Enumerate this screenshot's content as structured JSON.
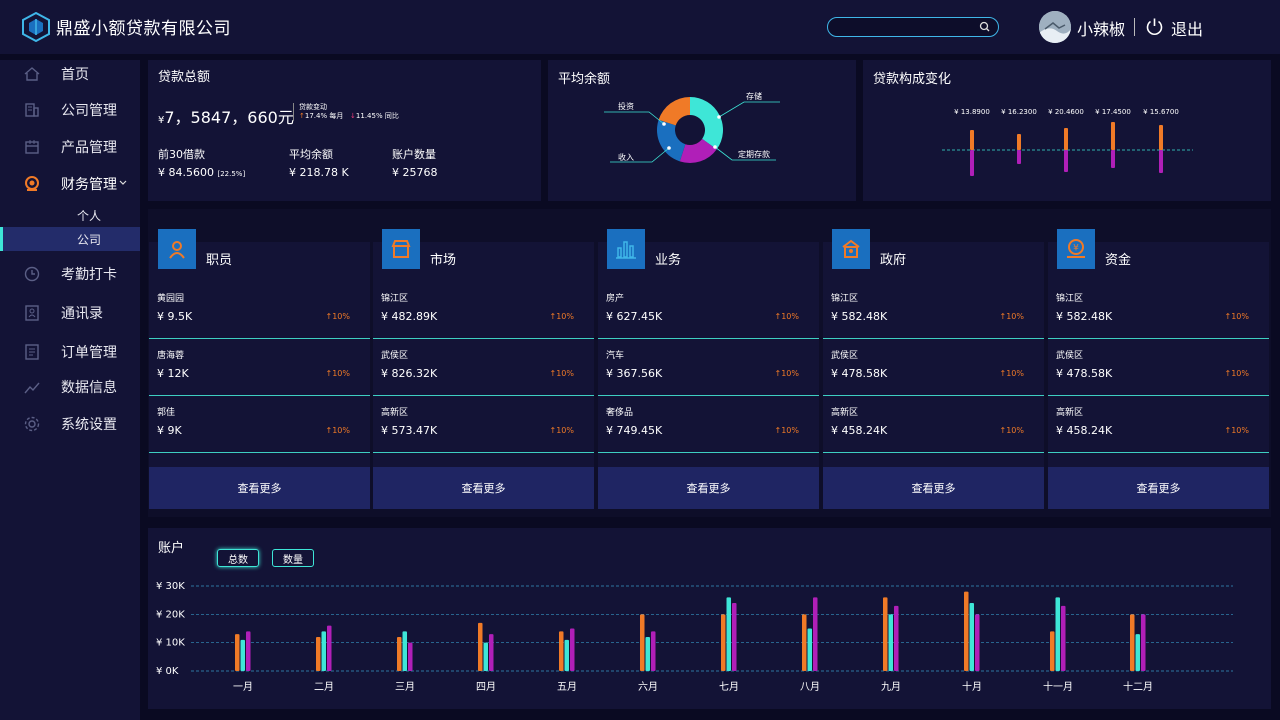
{
  "header": {
    "company": "鼎盛小额贷款有限公司",
    "search_placeholder": "",
    "username": "小辣椒",
    "logout": "退出"
  },
  "sidebar": {
    "items": [
      {
        "label": "首页",
        "icon": "home-icon"
      },
      {
        "label": "公司管理",
        "icon": "building-icon"
      },
      {
        "label": "产品管理",
        "icon": "product-icon"
      },
      {
        "label": "财务管理",
        "icon": "finance-icon",
        "expanded": true
      },
      {
        "label": "考勤打卡",
        "icon": "clock-icon"
      },
      {
        "label": "通讯录",
        "icon": "contacts-icon"
      },
      {
        "label": "订单管理",
        "icon": "order-icon"
      },
      {
        "label": "数据信息",
        "icon": "data-icon"
      },
      {
        "label": "系统设置",
        "icon": "gear-icon"
      }
    ],
    "sub_items": [
      {
        "label": "个人",
        "active": false
      },
      {
        "label": "公司",
        "active": true
      }
    ]
  },
  "loan_total": {
    "title": "贷款总额",
    "currency": "¥",
    "amount": "7，5847，660元",
    "trend_title": "贷款变动",
    "trend_up": "17.4% 每月",
    "trend_down": "11.45% 同比",
    "stats": [
      {
        "label": "前30借款",
        "value": "¥ 84.5600",
        "note": "[22.5%]"
      },
      {
        "label": "平均余额",
        "value": "¥ 218.78 K",
        "note": ""
      },
      {
        "label": "账户数量",
        "value": "¥ 25768",
        "note": ""
      }
    ]
  },
  "avg_balance": {
    "title": "平均余额",
    "segments": [
      {
        "label": "存储",
        "value": 35,
        "color": "#3ee6d7"
      },
      {
        "label": "定期存款",
        "value": 20,
        "color": "#b01fb8"
      },
      {
        "label": "收入",
        "value": 25,
        "color": "#1a6fbf"
      },
      {
        "label": "投资",
        "value": 20,
        "color": "#f07a27"
      }
    ]
  },
  "loan_change": {
    "title": "贷款构成变化",
    "values": [
      "¥ 13.8900",
      "¥ 16.2300",
      "¥ 20.4600",
      "¥ 17.4500",
      "¥ 15.6700"
    ]
  },
  "cards": [
    {
      "title": "职员",
      "icon": "person-icon",
      "rows": [
        {
          "name": "黄园园",
          "value": "¥ 9.5K",
          "pct": "10%"
        },
        {
          "name": "唐海蓉",
          "value": "¥ 12K",
          "pct": "10%"
        },
        {
          "name": "郭佳",
          "value": "¥ 9K",
          "pct": "10%"
        }
      ]
    },
    {
      "title": "市场",
      "icon": "store-icon",
      "rows": [
        {
          "name": "锦江区",
          "value": "¥ 482.89K",
          "pct": "10%"
        },
        {
          "name": "武侯区",
          "value": "¥ 826.32K",
          "pct": "10%"
        },
        {
          "name": "高新区",
          "value": "¥ 573.47K",
          "pct": "10%"
        }
      ]
    },
    {
      "title": "业务",
      "icon": "bar-chart-icon",
      "rows": [
        {
          "name": "房产",
          "value": "¥ 627.45K",
          "pct": "10%"
        },
        {
          "name": "汽车",
          "value": "¥ 367.56K",
          "pct": "10%"
        },
        {
          "name": "奢侈品",
          "value": "¥ 749.45K",
          "pct": "10%"
        }
      ]
    },
    {
      "title": "政府",
      "icon": "government-icon",
      "rows": [
        {
          "name": "锦江区",
          "value": "¥ 582.48K",
          "pct": "10%"
        },
        {
          "name": "武侯区",
          "value": "¥ 478.58K",
          "pct": "10%"
        },
        {
          "name": "高新区",
          "value": "¥ 458.24K",
          "pct": "10%"
        }
      ]
    },
    {
      "title": "资金",
      "icon": "money-icon",
      "rows": [
        {
          "name": "锦江区",
          "value": "¥ 582.48K",
          "pct": "10%"
        },
        {
          "name": "武侯区",
          "value": "¥ 478.58K",
          "pct": "10%"
        },
        {
          "name": "高新区",
          "value": "¥ 458.24K",
          "pct": "10%"
        }
      ]
    }
  ],
  "more_label": "查看更多",
  "accounts": {
    "title": "账户",
    "tabs": [
      "总数",
      "数量"
    ],
    "active_tab": 0
  },
  "colors": {
    "orange": "#f07a27",
    "cyan": "#3ee6d7",
    "purple": "#b01fb8",
    "blue": "#1a6fbf"
  },
  "chart_data": {
    "type": "bar",
    "categories": [
      "一月",
      "二月",
      "三月",
      "四月",
      "五月",
      "六月",
      "七月",
      "八月",
      "九月",
      "十月",
      "十一月",
      "十二月"
    ],
    "series": [
      {
        "values": [
          13,
          12,
          12,
          17,
          14,
          20,
          20,
          20,
          26,
          28,
          14,
          20
        ],
        "color": "#f07a27"
      },
      {
        "values": [
          11,
          14,
          14,
          10,
          11,
          12,
          26,
          15,
          20,
          24,
          26,
          13
        ],
        "color": "#3ee6d7"
      },
      {
        "values": [
          14,
          16,
          10,
          13,
          15,
          14,
          24,
          26,
          23,
          20,
          23,
          20
        ],
        "color": "#b01fb8"
      }
    ],
    "yticks": [
      "¥ 0K",
      "¥ 10K",
      "¥ 20K",
      "¥ 30K"
    ],
    "ylim": [
      0,
      30
    ]
  }
}
